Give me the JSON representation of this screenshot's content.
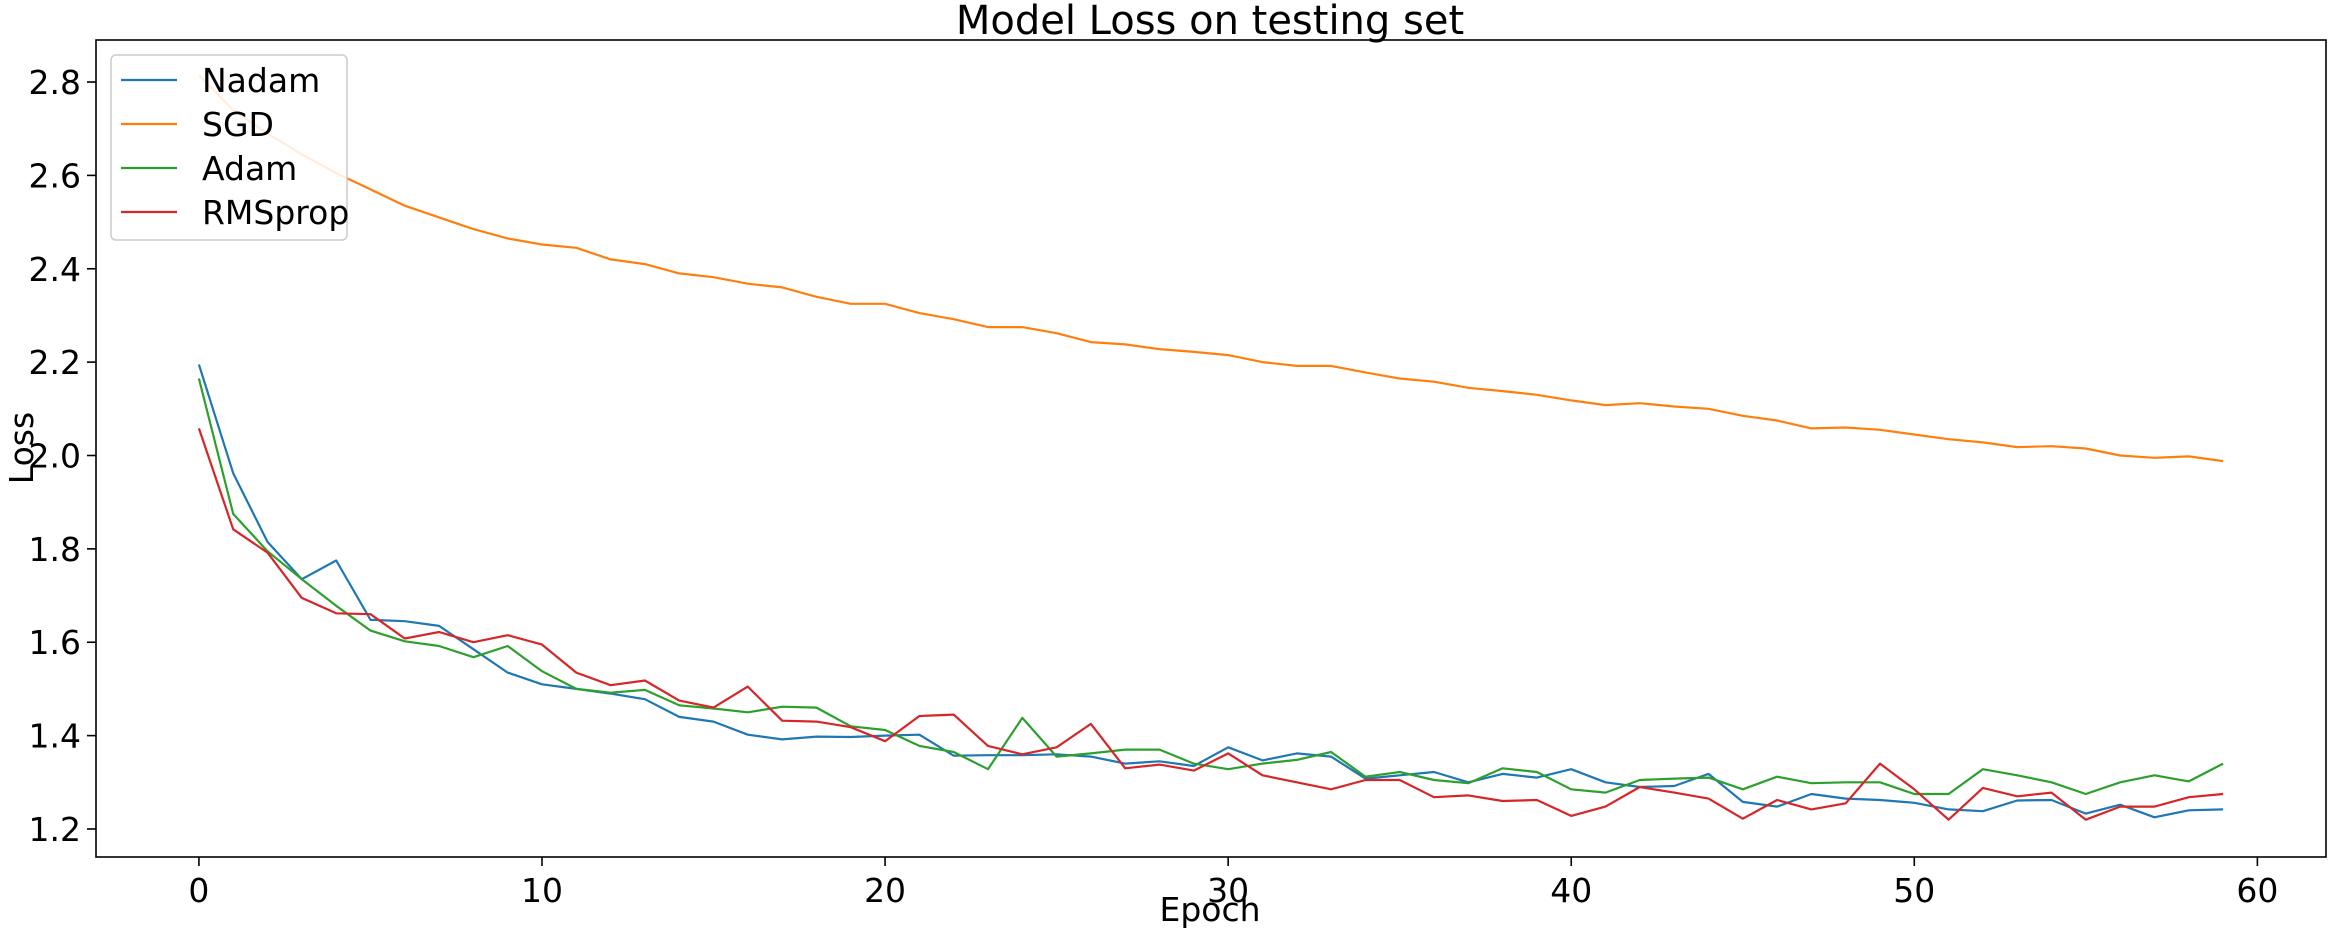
{
  "chart_data": {
    "type": "line",
    "title": "Model Loss on testing set",
    "xlabel": "Epoch",
    "ylabel": "Loss",
    "xlim": [
      -3,
      62
    ],
    "ylim": [
      1.14,
      2.89
    ],
    "xticks": [
      0,
      10,
      20,
      30,
      40,
      50,
      60
    ],
    "yticks": [
      1.2,
      1.4,
      1.6,
      1.8,
      2.0,
      2.2,
      2.4,
      2.6,
      2.8
    ],
    "legend_position": "upper-left",
    "grid": false,
    "series": [
      {
        "name": "Nadam",
        "color": "#1f77b4",
        "values": [
          2.195,
          1.962,
          1.815,
          1.735,
          1.775,
          1.648,
          1.645,
          1.635,
          1.585,
          1.535,
          1.51,
          1.5,
          1.49,
          1.478,
          1.44,
          1.43,
          1.402,
          1.392,
          1.398,
          1.397,
          1.4,
          1.402,
          1.357,
          1.358,
          1.358,
          1.36,
          1.355,
          1.34,
          1.345,
          1.335,
          1.375,
          1.347,
          1.362,
          1.355,
          1.308,
          1.315,
          1.322,
          1.3,
          1.318,
          1.31,
          1.328,
          1.3,
          1.29,
          1.292,
          1.318,
          1.258,
          1.248,
          1.275,
          1.265,
          1.262,
          1.256,
          1.242,
          1.238,
          1.261,
          1.262,
          1.233,
          1.252,
          1.225,
          1.24,
          1.242
        ]
      },
      {
        "name": "SGD",
        "color": "#ff7f0e",
        "values": [
          2.815,
          2.74,
          2.69,
          2.645,
          2.605,
          2.57,
          2.535,
          2.51,
          2.485,
          2.465,
          2.452,
          2.445,
          2.42,
          2.41,
          2.39,
          2.382,
          2.368,
          2.36,
          2.34,
          2.325,
          2.325,
          2.305,
          2.292,
          2.275,
          2.275,
          2.262,
          2.243,
          2.238,
          2.228,
          2.222,
          2.215,
          2.2,
          2.192,
          2.192,
          2.178,
          2.165,
          2.158,
          2.145,
          2.138,
          2.13,
          2.118,
          2.108,
          2.112,
          2.105,
          2.1,
          2.085,
          2.075,
          2.058,
          2.06,
          2.055,
          2.045,
          2.035,
          2.028,
          2.018,
          2.02,
          2.015,
          2.0,
          1.995,
          1.998,
          1.988
        ]
      },
      {
        "name": "Adam",
        "color": "#2ca02c",
        "values": [
          2.165,
          1.875,
          1.795,
          1.735,
          1.678,
          1.625,
          1.602,
          1.592,
          1.568,
          1.592,
          1.538,
          1.5,
          1.492,
          1.498,
          1.465,
          1.458,
          1.45,
          1.462,
          1.46,
          1.42,
          1.412,
          1.378,
          1.365,
          1.328,
          1.438,
          1.355,
          1.362,
          1.37,
          1.37,
          1.34,
          1.328,
          1.34,
          1.348,
          1.365,
          1.312,
          1.322,
          1.305,
          1.298,
          1.33,
          1.322,
          1.285,
          1.278,
          1.305,
          1.308,
          1.31,
          1.285,
          1.312,
          1.298,
          1.3,
          1.3,
          1.275,
          1.275,
          1.328,
          1.315,
          1.3,
          1.275,
          1.3,
          1.315,
          1.302,
          1.34
        ]
      },
      {
        "name": "RMSprop",
        "color": "#d62728",
        "values": [
          2.058,
          1.842,
          1.792,
          1.695,
          1.662,
          1.66,
          1.608,
          1.622,
          1.6,
          1.615,
          1.595,
          1.535,
          1.508,
          1.518,
          1.475,
          1.46,
          1.505,
          1.432,
          1.43,
          1.418,
          1.388,
          1.442,
          1.445,
          1.378,
          1.36,
          1.375,
          1.425,
          1.33,
          1.338,
          1.325,
          1.362,
          1.315,
          1.3,
          1.285,
          1.305,
          1.305,
          1.268,
          1.272,
          1.26,
          1.262,
          1.228,
          1.248,
          1.29,
          1.278,
          1.265,
          1.222,
          1.262,
          1.242,
          1.255,
          1.34,
          1.285,
          1.22,
          1.288,
          1.27,
          1.278,
          1.22,
          1.248,
          1.248,
          1.268,
          1.275
        ]
      }
    ]
  }
}
